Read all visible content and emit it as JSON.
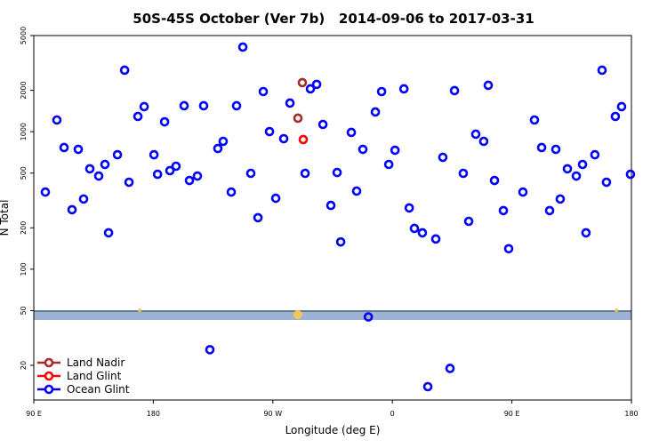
{
  "chart_data": {
    "type": "scatter",
    "title": "50S-45S October (Ver 7b)   2014-09-06 to 2017-03-31",
    "xlabel": "Longitude (deg E)",
    "ylabel": "N Total",
    "xlim": [
      90,
      540
    ],
    "xticks": [
      {
        "value": 90,
        "label": "90 E"
      },
      180,
      {
        "value": 270,
        "label": "90 W"
      },
      {
        "value": 360,
        "label": "0"
      },
      {
        "value": 450,
        "label": "90 E"
      },
      {
        "value": 540,
        "label": "180"
      }
    ],
    "ylim": [
      11.2,
      5000
    ],
    "yscale": "log",
    "yticks": [
      20,
      50,
      100,
      200,
      500,
      1000,
      2000,
      5000
    ],
    "legend": "lower left",
    "series": [
      {
        "name": "Land Nadir",
        "color": "#a52a2a",
        "x": [
          292.2,
          288.9
        ],
        "values": [
          2273,
          1254
        ]
      },
      {
        "name": "Land Glint",
        "color": "#ff0000",
        "x": [
          292.9
        ],
        "values": [
          877
        ]
      },
      {
        "name": "Ocean Glint",
        "color": "#0000ff",
        "x": [
          98.7,
          107.4,
          112.8,
          118.8,
          123.5,
          127.5,
          132.2,
          138.9,
          143.6,
          146.3,
          153.0,
          158.4,
          161.7,
          168.4,
          173.1,
          180.5,
          183.2,
          188.5,
          192.5,
          197.1,
          203.2,
          207.2,
          213.2,
          217.9,
          228.6,
          232.6,
          238.7,
          242.7,
          247.4,
          253.4,
          258.8,
          262.8,
          267.5,
          272.2,
          278.2,
          282.9,
          294.3,
          298.3,
          303.0,
          307.7,
          313.7,
          318.4,
          321.1,
          329.1,
          333.1,
          337.8,
          341.9,
          347.2,
          351.9,
          357.3,
          362.0,
          368.7,
          372.7,
          376.6,
          382.6,
          386.7,
          392.7,
          398.0,
          403.4,
          406.8,
          413.4,
          417.5,
          422.8,
          428.8,
          432.2,
          436.9,
          443.6,
          447.6,
          458.3,
          467.0,
          472.4,
          478.4,
          483.1,
          486.4,
          491.8,
          498.5,
          503.2,
          505.8,
          512.5,
          517.9,
          521.2,
          527.9,
          532.6,
          539.3,
          222.6
        ],
        "values": [
          364,
          1216,
          767,
          271,
          744,
          324,
          537,
          476,
          578,
          184,
          680,
          2800,
          429,
          1291,
          1521,
          680,
          490,
          1180,
          521,
          561,
          1544,
          442,
          476,
          1544,
          755,
          851,
          364,
          1544,
          4122,
          498,
          237,
          1958,
          1002,
          328,
          889,
          1614,
          498,
          2049,
          2208,
          1129,
          291,
          505,
          158,
          988,
          370,
          744,
          45,
          1391,
          1958,
          578,
          733,
          2049,
          279,
          198,
          184,
          14,
          166,
          651,
          19,
          1989,
          498,
          223,
          959,
          851,
          2174,
          442,
          267,
          141,
          364,
          1216,
          767,
          267,
          744,
          324,
          537,
          476,
          578,
          184,
          680,
          2800,
          429,
          1291,
          1521,
          490,
          26
        ]
      }
    ]
  }
}
